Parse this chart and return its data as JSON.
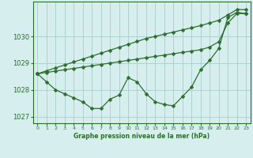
{
  "x": [
    0,
    1,
    2,
    3,
    4,
    5,
    6,
    7,
    8,
    9,
    10,
    11,
    12,
    13,
    14,
    15,
    16,
    17,
    18,
    19,
    20,
    21,
    22,
    23
  ],
  "y_actual": [
    1028.6,
    1028.3,
    1028.0,
    1027.85,
    1027.7,
    1027.55,
    1027.3,
    1027.3,
    1027.65,
    1027.8,
    1028.45,
    1028.3,
    1027.85,
    1027.55,
    1027.45,
    1027.4,
    1027.75,
    1028.1,
    1028.75,
    1029.1,
    1029.55,
    1030.7,
    1030.9,
    1030.85
  ],
  "y_upper": [
    1028.6,
    1028.71,
    1028.82,
    1028.93,
    1029.04,
    1029.15,
    1029.26,
    1029.37,
    1029.48,
    1029.59,
    1029.7,
    1029.81,
    1029.92,
    1030.0,
    1030.08,
    1030.16,
    1030.24,
    1030.32,
    1030.4,
    1030.5,
    1030.6,
    1030.8,
    1031.0,
    1031.0
  ],
  "y_lower": [
    1028.6,
    1028.65,
    1028.7,
    1028.75,
    1028.8,
    1028.85,
    1028.9,
    1028.95,
    1029.0,
    1029.05,
    1029.1,
    1029.15,
    1029.2,
    1029.25,
    1029.3,
    1029.35,
    1029.4,
    1029.45,
    1029.5,
    1029.6,
    1029.8,
    1030.5,
    1030.85,
    1030.85
  ],
  "bg_color": "#d6eeee",
  "grid_color": "#aacccc",
  "line_color": "#2d6e2d",
  "xlabel": "Graphe pression niveau de la mer (hPa)",
  "ylim": [
    1026.75,
    1031.3
  ],
  "yticks": [
    1027,
    1028,
    1029,
    1030
  ],
  "xticks": [
    0,
    1,
    2,
    3,
    4,
    5,
    6,
    7,
    8,
    9,
    10,
    11,
    12,
    13,
    14,
    15,
    16,
    17,
    18,
    19,
    20,
    21,
    22,
    23
  ]
}
